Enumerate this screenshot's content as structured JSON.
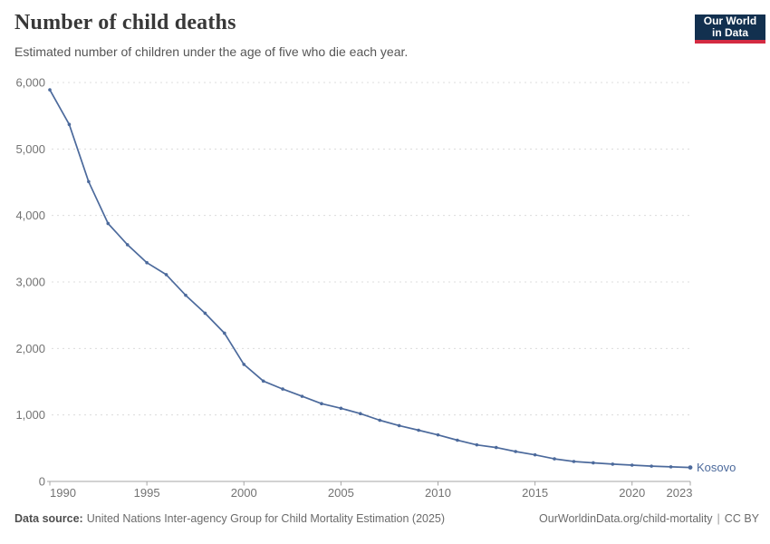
{
  "header": {
    "title": "Number of child deaths",
    "subtitle": "Estimated number of children under the age of five who die each year.",
    "logo": {
      "line1": "Our World",
      "line2": "in Data",
      "bg": "#12304f",
      "accent": "#d42b42"
    }
  },
  "chart_data": {
    "type": "line",
    "title": "Number of child deaths",
    "xlabel": "",
    "ylabel": "",
    "xlim": [
      1990,
      2023
    ],
    "ylim": [
      0,
      6000
    ],
    "grid": "horizontal-dashed",
    "legend_position": "end-of-line-label",
    "x_ticks": [
      {
        "v": 1990,
        "label": "1990"
      },
      {
        "v": 1995,
        "label": "1995"
      },
      {
        "v": 2000,
        "label": "2000"
      },
      {
        "v": 2005,
        "label": "2005"
      },
      {
        "v": 2010,
        "label": "2010"
      },
      {
        "v": 2015,
        "label": "2015"
      },
      {
        "v": 2020,
        "label": "2020"
      },
      {
        "v": 2023,
        "label": "2023"
      }
    ],
    "y_ticks": [
      {
        "v": 0,
        "label": "0"
      },
      {
        "v": 1000,
        "label": "1,000"
      },
      {
        "v": 2000,
        "label": "2,000"
      },
      {
        "v": 3000,
        "label": "3,000"
      },
      {
        "v": 4000,
        "label": "4,000"
      },
      {
        "v": 5000,
        "label": "5,000"
      },
      {
        "v": 6000,
        "label": "6,000"
      }
    ],
    "series": [
      {
        "name": "Kosovo",
        "color": "#4c6a9c",
        "x": [
          1990,
          1991,
          1992,
          1993,
          1994,
          1995,
          1996,
          1997,
          1998,
          1999,
          2000,
          2001,
          2002,
          2003,
          2004,
          2005,
          2006,
          2007,
          2008,
          2009,
          2010,
          2011,
          2012,
          2013,
          2014,
          2015,
          2016,
          2017,
          2018,
          2019,
          2020,
          2021,
          2022,
          2023
        ],
        "values": [
          5890,
          5370,
          4510,
          3880,
          3560,
          3290,
          3110,
          2800,
          2530,
          2230,
          1760,
          1510,
          1390,
          1280,
          1170,
          1100,
          1020,
          920,
          840,
          770,
          700,
          620,
          550,
          510,
          450,
          400,
          340,
          300,
          280,
          260,
          245,
          230,
          220,
          210
        ]
      }
    ]
  },
  "footer": {
    "datasource_label": "Data source:",
    "datasource": "United Nations Inter-agency Group for Child Mortality Estimation (2025)",
    "link": "OurWorldinData.org/child-mortality",
    "divider": "|",
    "license": "CC BY"
  },
  "colors": {
    "line": "#4c6a9c",
    "grid": "#dcdcdc",
    "axis": "#a5a5a5",
    "tick_label": "#737373",
    "title": "#383838",
    "subtitle": "#555555",
    "footer": "#6b6b6b"
  }
}
